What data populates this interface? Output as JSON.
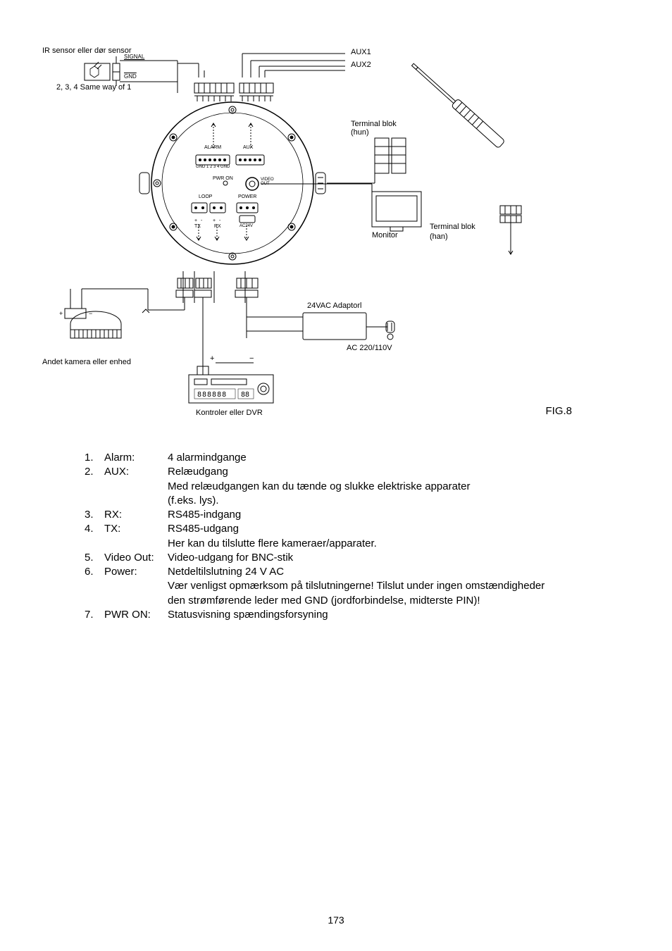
{
  "diagram": {
    "fig_label": "FIG.8",
    "labels": {
      "ir_sensor": "IR sensor eller dør sensor",
      "signal": "SIGNAL",
      "gnd": "GND",
      "same_way": "2, 3, 4 Same way of 1",
      "aux1": "AUX1",
      "aux2": "AUX2",
      "terminal_hun": "Terminal blok\n(hun)",
      "monitor": "Monitor",
      "terminal_han": "Terminal blok",
      "han": "(han)",
      "adaptor": "24VAC Adaptorl",
      "ac": "AC 220/110V",
      "andet": "Andet kamera eller enhed",
      "kontrol": "Kontroler eller DVR",
      "alarm": "ALARM",
      "aux": "AUX",
      "pwr_on": "PWR ON",
      "video_out": "VIDEO\nOUT",
      "power": "POWER",
      "loop": "LOOP",
      "tx": "TX",
      "rx": "RX",
      "ac24v": "AC24V",
      "gnd_ticks": "GND 1 2 3 4 GND"
    },
    "colors": {
      "stroke": "#000000",
      "bg": "#ffffff",
      "fontsize_small": 7,
      "fontsize_label": 11
    }
  },
  "list": {
    "items": [
      {
        "num": "1.",
        "label": "Alarm:",
        "desc": [
          "4 alarmindgange"
        ]
      },
      {
        "num": "2.",
        "label": "AUX:",
        "desc": [
          "Relæudgang",
          "Med relæudgangen kan du tænde og slukke elektriske apparater",
          "(f.eks. lys)."
        ]
      },
      {
        "num": "3.",
        "label": "RX:",
        "desc": [
          "RS485-indgang"
        ]
      },
      {
        "num": "4.",
        "label": "TX:",
        "desc": [
          "RS485-udgang",
          "Her kan du tilslutte flere kameraer/apparater."
        ]
      },
      {
        "num": "5.",
        "label": "Video Out:",
        "desc": [
          "Video-udgang for BNC-stik"
        ]
      },
      {
        "num": "6.",
        "label": "Power:",
        "desc": [
          "Netdeltilslutning 24 V AC",
          "Vær venligst opmærksom på tilslutningerne! Tilslut under ingen omstændigheder",
          "den strømførende leder med GND (jordforbindelse, midterste PIN)!"
        ]
      },
      {
        "num": "7.",
        "label": "PWR ON:",
        "desc": [
          "Statusvisning spændingsforsyning"
        ]
      }
    ]
  },
  "page_number": "173"
}
